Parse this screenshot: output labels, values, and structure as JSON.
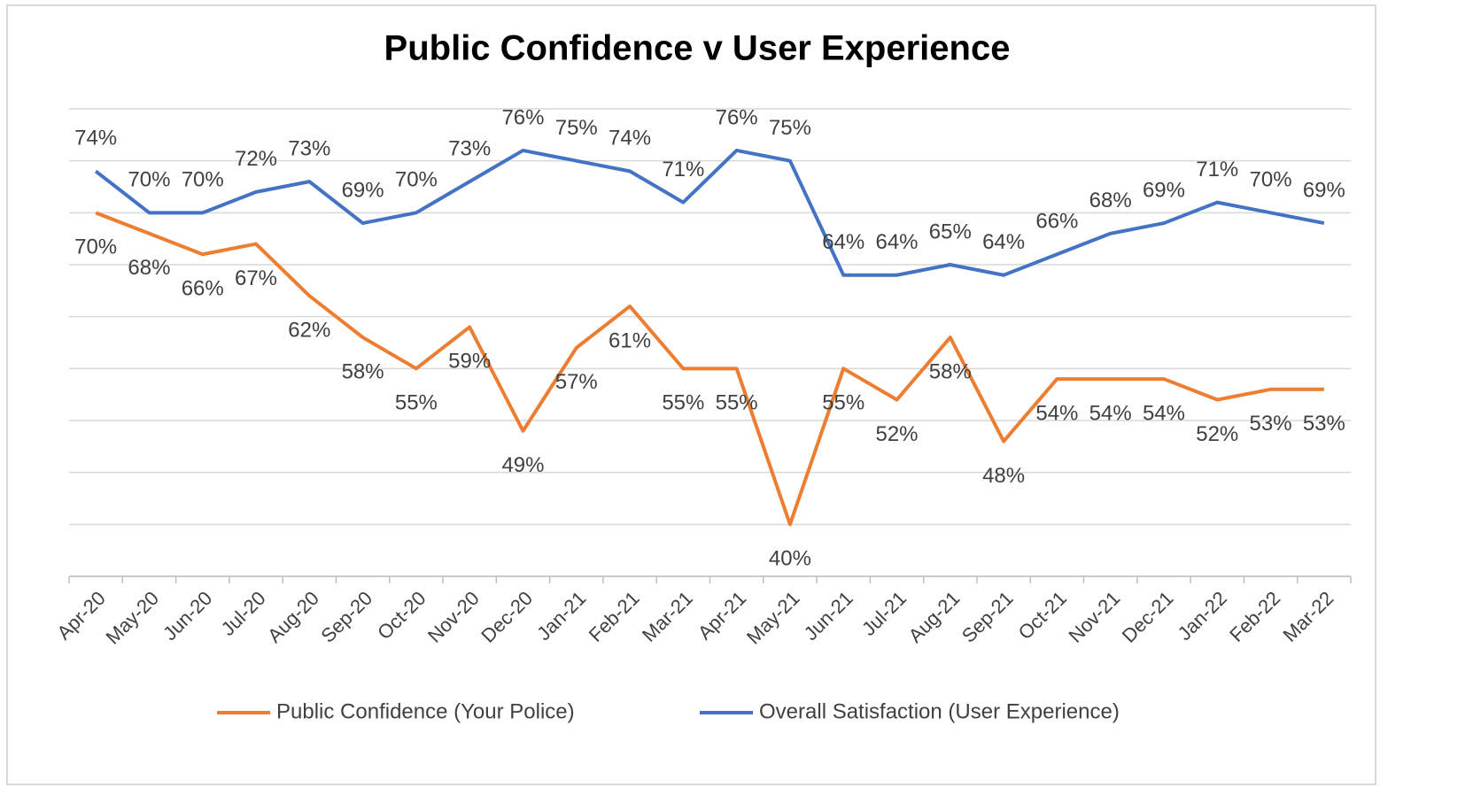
{
  "chart_data": {
    "type": "line",
    "title": "Public Confidence v User Experience",
    "categories": [
      "Apr-20",
      "May-20",
      "Jun-20",
      "Jul-20",
      "Aug-20",
      "Sep-20",
      "Oct-20",
      "Nov-20",
      "Dec-20",
      "Jan-21",
      "Feb-21",
      "Mar-21",
      "Apr-21",
      "May-21",
      "Jun-21",
      "Jul-21",
      "Aug-21",
      "Sep-21",
      "Oct-21",
      "Nov-21",
      "Dec-21",
      "Jan-22",
      "Feb-22",
      "Mar-22"
    ],
    "series": [
      {
        "name": "Public Confidence (Your Police)",
        "color": "#ed7d31",
        "values": [
          70,
          68,
          66,
          67,
          62,
          58,
          55,
          59,
          49,
          57,
          61,
          55,
          55,
          40,
          55,
          52,
          58,
          48,
          54,
          54,
          54,
          52,
          53,
          53
        ],
        "value_labels": [
          "70%",
          "68%",
          "66%",
          "67%",
          "62%",
          "58%",
          "55%",
          "59%",
          "49%",
          "57%",
          "61%",
          "55%",
          "55%",
          "40%",
          "55%",
          "52%",
          "58%",
          "48%",
          "54%",
          "54%",
          "54%",
          "52%",
          "53%",
          "53%"
        ]
      },
      {
        "name": "Overall Satisfaction (User Experience)",
        "color": "#4472c4",
        "values": [
          74,
          70,
          70,
          72,
          73,
          69,
          70,
          73,
          76,
          75,
          74,
          71,
          76,
          75,
          64,
          64,
          65,
          64,
          66,
          68,
          69,
          71,
          70,
          69
        ],
        "value_labels": [
          "74%",
          "70%",
          "70%",
          "72%",
          "73%",
          "69%",
          "70%",
          "73%",
          "76%",
          "75%",
          "74%",
          "71%",
          "76%",
          "75%",
          "64%",
          "64%",
          "65%",
          "64%",
          "66%",
          "68%",
          "69%",
          "71%",
          "70%",
          "69%"
        ]
      }
    ],
    "ylim": [
      35,
      80
    ],
    "yticks": [
      35,
      40,
      45,
      50,
      55,
      60,
      65,
      70,
      75,
      80
    ],
    "grid": true,
    "legend": "bottom"
  }
}
